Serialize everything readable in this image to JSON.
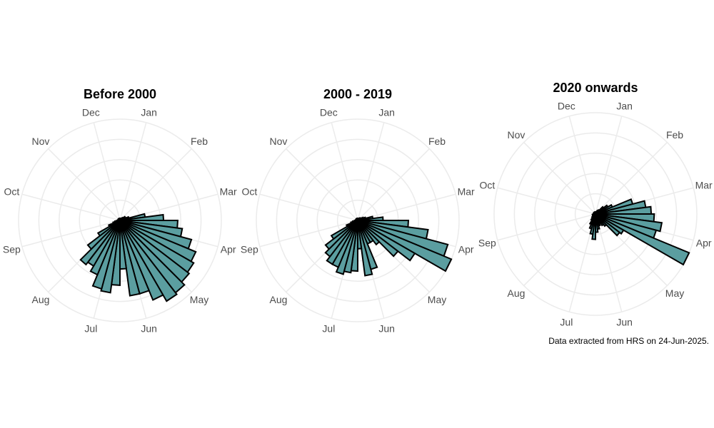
{
  "colors": {
    "bar_fill": "#5b9ea0",
    "bar_stroke": "#000000",
    "grid": "#ebebeb",
    "label": "#4d4d4d"
  },
  "caption": "Data extracted from HRS on 24-Jun-2025.",
  "chart_data": [
    {
      "type": "polar-bar",
      "title": "Before 2000",
      "month_labels": [
        "Jan",
        "Feb",
        "Mar",
        "Apr",
        "May",
        "Jun",
        "Jul",
        "Aug",
        "Sep",
        "Oct",
        "Nov",
        "Dec"
      ],
      "bins_per_month": 4,
      "values": [
        2,
        2,
        2,
        1,
        2,
        3,
        4,
        6,
        6,
        9,
        25,
        43,
        57,
        62,
        73,
        81,
        84,
        86,
        90,
        92,
        85,
        75,
        75,
        48,
        64,
        72,
        70,
        58,
        52,
        55,
        40,
        25,
        12,
        7,
        5,
        3,
        2,
        2,
        2,
        2,
        2,
        2,
        2,
        2,
        2,
        2,
        2,
        2
      ],
      "rlim": [
        0,
        100
      ],
      "grid_rings": 5
    },
    {
      "type": "polar-bar",
      "title": "2000 - 2019",
      "month_labels": [
        "Jan",
        "Feb",
        "Mar",
        "Apr",
        "May",
        "Jun",
        "Jul",
        "Aug",
        "Sep",
        "Oct",
        "Nov",
        "Dec"
      ],
      "bins_per_month": 4,
      "values": [
        2,
        2,
        2,
        2,
        2,
        3,
        3,
        4,
        6,
        8,
        15,
        25,
        50,
        70,
        92,
        100,
        65,
        50,
        30,
        25,
        25,
        50,
        55,
        28,
        50,
        52,
        55,
        50,
        50,
        45,
        40,
        30,
        12,
        7,
        5,
        3,
        2,
        2,
        2,
        2,
        2,
        2,
        2,
        2,
        2,
        2,
        2,
        2
      ],
      "rlim": [
        0,
        100
      ],
      "grid_rings": 5
    },
    {
      "type": "polar-bar",
      "title": "2020 onwards",
      "month_labels": [
        "Jan",
        "Feb",
        "Mar",
        "Apr",
        "May",
        "Jun",
        "Jul",
        "Aug",
        "Sep",
        "Oct",
        "Nov",
        "Dec"
      ],
      "bins_per_month": 4,
      "values": [
        2,
        2,
        2,
        3,
        4,
        5,
        10,
        14,
        18,
        38,
        50,
        55,
        58,
        66,
        62,
        100,
        32,
        30,
        15,
        13,
        10,
        12,
        15,
        18,
        25,
        20,
        15,
        11,
        7,
        5,
        4,
        3,
        3,
        3,
        3,
        2,
        2,
        2,
        2,
        2,
        2,
        2,
        2,
        2,
        2,
        2,
        2,
        2
      ],
      "rlim": [
        0,
        100
      ],
      "grid_rings": 5
    }
  ]
}
